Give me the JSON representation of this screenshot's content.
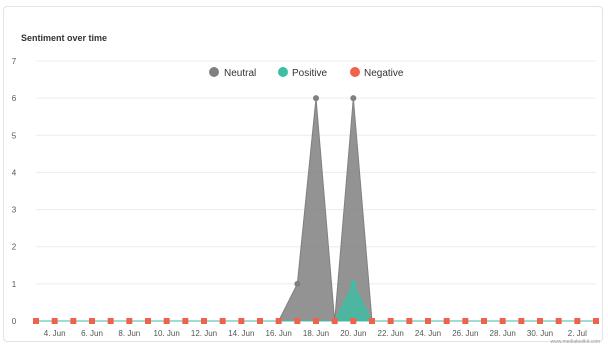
{
  "chart_data": {
    "type": "area",
    "title": "Sentiment over time",
    "x": [
      "3. Jun",
      "4. Jun",
      "5. Jun",
      "6. Jun",
      "7. Jun",
      "8. Jun",
      "9. Jun",
      "10. Jun",
      "11. Jun",
      "12. Jun",
      "13. Jun",
      "14. Jun",
      "15. Jun",
      "16. Jun",
      "17. Jun",
      "18. Jun",
      "19. Jun",
      "20. Jun",
      "21. Jun",
      "22. Jun",
      "23. Jun",
      "24. Jun",
      "25. Jun",
      "26. Jun",
      "27. Jun",
      "28. Jun",
      "29. Jun",
      "30. Jun",
      "1. Jul",
      "2. Jul",
      "3. Jul"
    ],
    "x_tick_labels": [
      "4. Jun",
      "6. Jun",
      "8. Jun",
      "10. Jun",
      "12. Jun",
      "14. Jun",
      "16. Jun",
      "18. Jun",
      "20. Jun",
      "22. Jun",
      "24. Jun",
      "26. Jun",
      "28. Jun",
      "30. Jun",
      "2. Jul"
    ],
    "y_ticks": [
      0,
      1,
      2,
      3,
      4,
      5,
      6,
      7
    ],
    "ylim": [
      0,
      7
    ],
    "grid": true,
    "legend": "top-center",
    "series": [
      {
        "name": "Neutral",
        "color": "#808080",
        "values": [
          0,
          0,
          0,
          0,
          0,
          0,
          0,
          0,
          0,
          0,
          0,
          0,
          0,
          0,
          1,
          6,
          0,
          6,
          0,
          0,
          0,
          0,
          0,
          0,
          0,
          0,
          0,
          0,
          0,
          0,
          0
        ]
      },
      {
        "name": "Positive",
        "color": "#3cbfa5",
        "values": [
          0,
          0,
          0,
          0,
          0,
          0,
          0,
          0,
          0,
          0,
          0,
          0,
          0,
          0,
          0,
          0,
          0,
          1,
          0,
          0,
          0,
          0,
          0,
          0,
          0,
          0,
          0,
          0,
          0,
          0,
          0
        ]
      },
      {
        "name": "Negative",
        "color": "#f0624d",
        "values": [
          0,
          0,
          0,
          0,
          0,
          0,
          0,
          0,
          0,
          0,
          0,
          0,
          0,
          0,
          0,
          0,
          0,
          0,
          0,
          0,
          0,
          0,
          0,
          0,
          0,
          0,
          0,
          0,
          0,
          0,
          0
        ]
      }
    ],
    "credit": "www.mediatoolkit.com"
  }
}
